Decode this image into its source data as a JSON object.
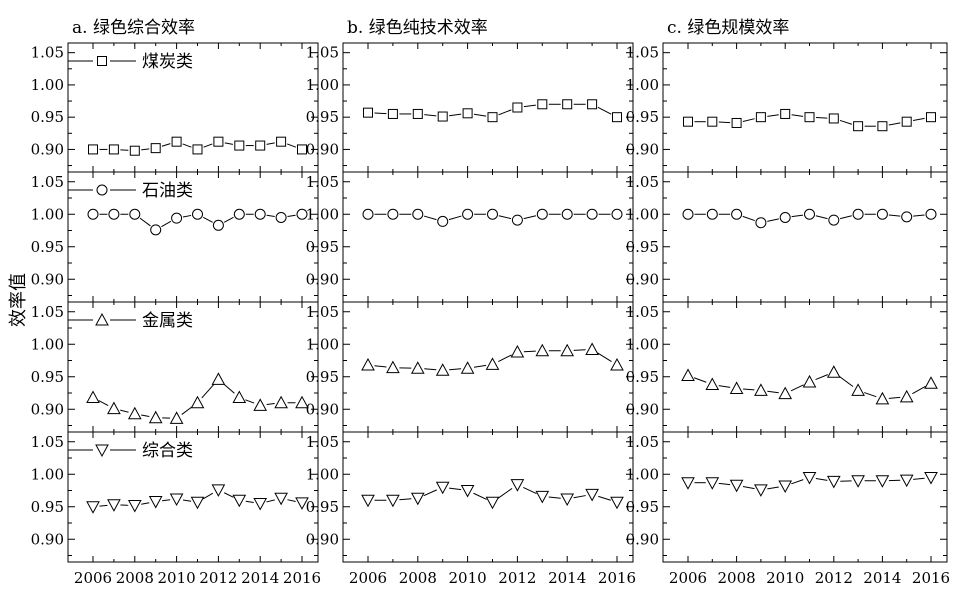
{
  "y_label": "效率值",
  "x_ticks": [
    "2006",
    "2008",
    "2010",
    "2012",
    "2014",
    "2016"
  ],
  "y_ticks": [
    "1.05",
    "1.00",
    "0.95",
    "0.90"
  ],
  "chart_data": [
    {
      "type": "line",
      "title": "a. 绿色综合效率",
      "x": [
        2006,
        2007,
        2008,
        2009,
        2010,
        2011,
        2012,
        2013,
        2014,
        2015,
        2016
      ],
      "ylim": [
        0.865,
        1.065
      ],
      "series": [
        {
          "name": "煤炭类",
          "marker": "square",
          "values": [
            0.9,
            0.9,
            0.898,
            0.902,
            0.912,
            0.9,
            0.912,
            0.906,
            0.906,
            0.912,
            0.9
          ]
        },
        {
          "name": "石油类",
          "marker": "circle",
          "values": [
            1.0,
            1.0,
            1.0,
            0.976,
            0.994,
            1.0,
            0.983,
            1.0,
            1.0,
            0.995,
            1.0
          ]
        },
        {
          "name": "金属类",
          "marker": "triangle-up",
          "values": [
            0.918,
            0.901,
            0.893,
            0.887,
            0.886,
            0.91,
            0.946,
            0.918,
            0.906,
            0.91,
            0.91
          ]
        },
        {
          "name": "综合类",
          "marker": "triangle-down",
          "values": [
            0.95,
            0.953,
            0.952,
            0.958,
            0.962,
            0.957,
            0.976,
            0.96,
            0.955,
            0.963,
            0.956
          ]
        }
      ]
    },
    {
      "type": "line",
      "title": "b. 绿色纯技术效率",
      "x": [
        2006,
        2007,
        2008,
        2009,
        2010,
        2011,
        2012,
        2013,
        2014,
        2015,
        2016
      ],
      "ylim": [
        0.865,
        1.065
      ],
      "series": [
        {
          "name": "煤炭类",
          "marker": "square",
          "values": [
            0.957,
            0.955,
            0.955,
            0.951,
            0.956,
            0.95,
            0.965,
            0.97,
            0.97,
            0.97,
            0.95
          ]
        },
        {
          "name": "石油类",
          "marker": "circle",
          "values": [
            1.0,
            1.0,
            1.0,
            0.989,
            1.0,
            1.0,
            0.991,
            1.0,
            1.0,
            1.0,
            1.0
          ]
        },
        {
          "name": "金属类",
          "marker": "triangle-up",
          "values": [
            0.968,
            0.964,
            0.963,
            0.96,
            0.963,
            0.969,
            0.988,
            0.99,
            0.99,
            0.992,
            0.968
          ]
        },
        {
          "name": "综合类",
          "marker": "triangle-down",
          "values": [
            0.96,
            0.96,
            0.963,
            0.98,
            0.975,
            0.957,
            0.984,
            0.966,
            0.962,
            0.969,
            0.957
          ]
        }
      ]
    },
    {
      "type": "line",
      "title": "c. 绿色规模效率",
      "x": [
        2006,
        2007,
        2008,
        2009,
        2010,
        2011,
        2012,
        2013,
        2014,
        2015,
        2016
      ],
      "ylim": [
        0.865,
        1.065
      ],
      "series": [
        {
          "name": "煤炭类",
          "marker": "square",
          "values": [
            0.943,
            0.943,
            0.941,
            0.95,
            0.955,
            0.95,
            0.948,
            0.936,
            0.936,
            0.943,
            0.95
          ]
        },
        {
          "name": "石油类",
          "marker": "circle",
          "values": [
            1.0,
            1.0,
            1.0,
            0.987,
            0.995,
            1.0,
            0.991,
            1.0,
            1.0,
            0.996,
            1.0
          ]
        },
        {
          "name": "金属类",
          "marker": "triangle-up",
          "values": [
            0.952,
            0.938,
            0.932,
            0.929,
            0.924,
            0.942,
            0.957,
            0.929,
            0.916,
            0.919,
            0.94
          ]
        },
        {
          "name": "综合类",
          "marker": "triangle-down",
          "values": [
            0.987,
            0.987,
            0.983,
            0.976,
            0.982,
            0.995,
            0.989,
            0.99,
            0.99,
            0.991,
            0.995
          ]
        }
      ]
    }
  ]
}
